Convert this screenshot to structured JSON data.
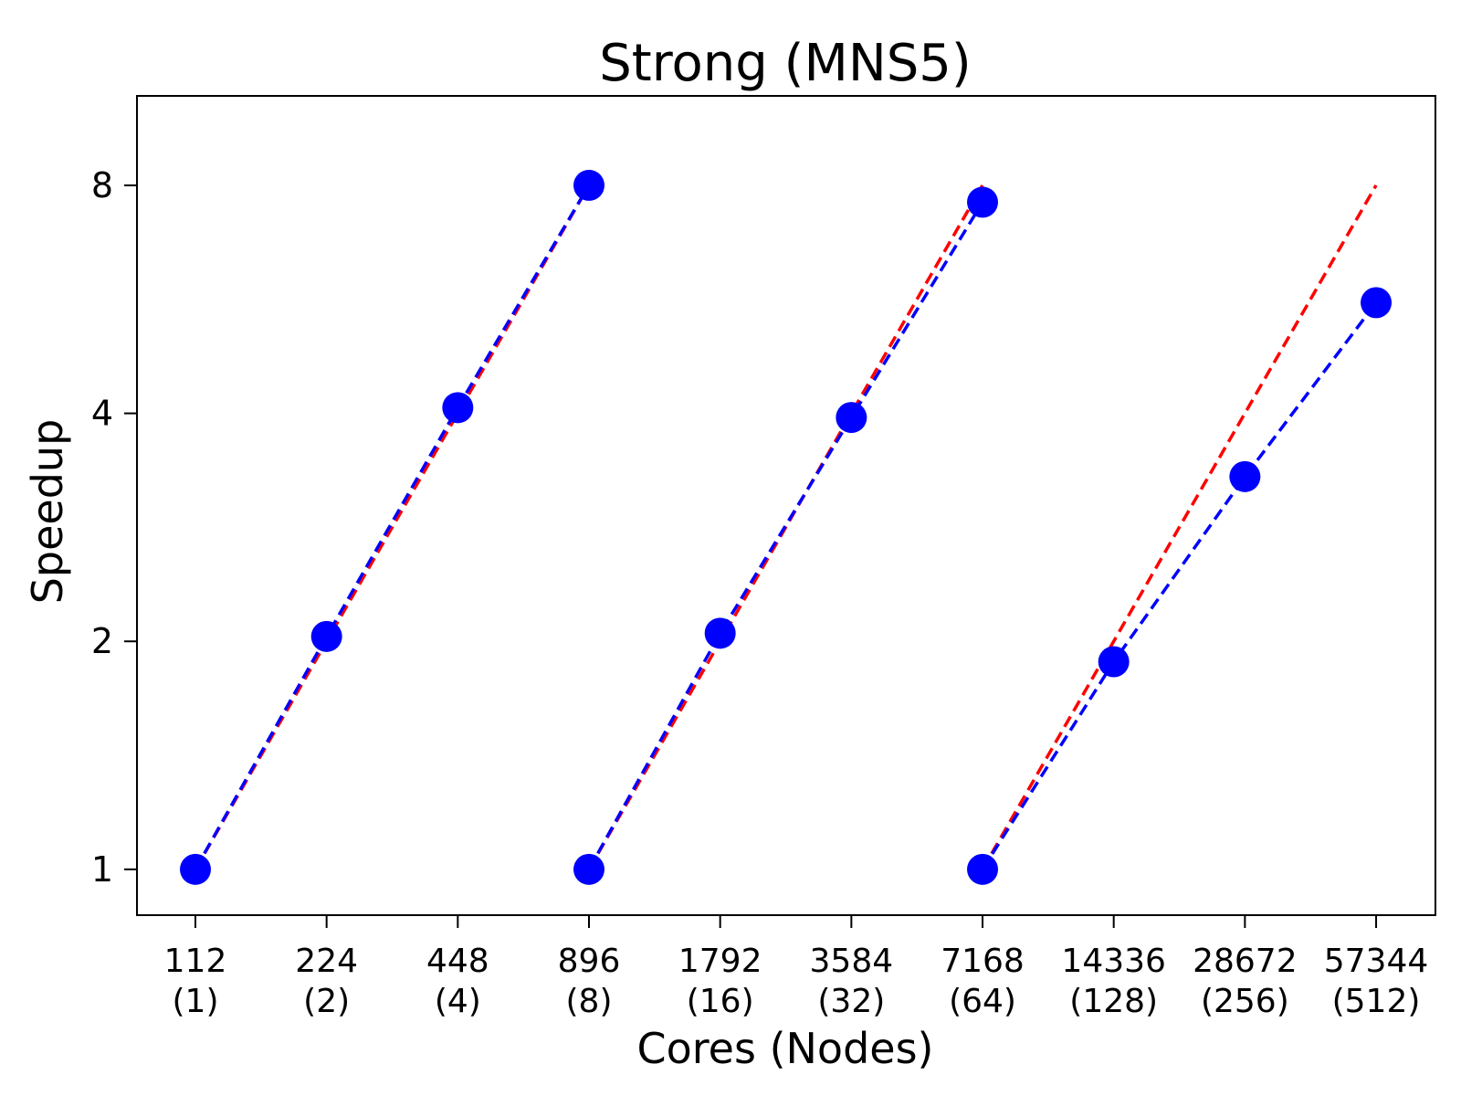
{
  "chart_data": {
    "type": "line",
    "title": "Strong (MNS5)",
    "xlabel": "Cores (Nodes)",
    "ylabel": "Speedup",
    "y_scale": "log2",
    "ylim": [
      0.87,
      10.5
    ],
    "yticks": [
      1,
      2,
      4,
      8
    ],
    "ytick_labels": [
      "1",
      "2",
      "4",
      "8"
    ],
    "categories": [
      [
        "112",
        "(1)"
      ],
      [
        "224",
        "(2)"
      ],
      [
        "448",
        "(4)"
      ],
      [
        "896",
        "(8)"
      ],
      [
        "1792",
        "(16)"
      ],
      [
        "3584",
        "(32)"
      ],
      [
        "7168",
        "(64)"
      ],
      [
        "14336",
        "(128)"
      ],
      [
        "28672",
        "(256)"
      ],
      [
        "57344",
        "(512)"
      ]
    ],
    "grid": false,
    "colors": {
      "measured": "#0000ff",
      "ideal": "#ff0000"
    },
    "groups": [
      {
        "measured": {
          "x": [
            0,
            1,
            2,
            3
          ],
          "values": [
            1.0,
            2.03,
            4.07,
            8.0
          ]
        },
        "ideal": {
          "x": [
            0,
            3
          ],
          "values": [
            1,
            8
          ]
        }
      },
      {
        "measured": {
          "x": [
            3,
            4,
            5,
            6
          ],
          "values": [
            1.0,
            2.05,
            3.95,
            7.6
          ]
        },
        "ideal": {
          "x": [
            3,
            6
          ],
          "values": [
            1,
            8
          ]
        }
      },
      {
        "measured": {
          "x": [
            6,
            7,
            8,
            9
          ],
          "values": [
            1.0,
            1.88,
            3.3,
            5.6
          ]
        },
        "ideal": {
          "x": [
            6,
            9
          ],
          "values": [
            1,
            8
          ]
        }
      }
    ]
  }
}
